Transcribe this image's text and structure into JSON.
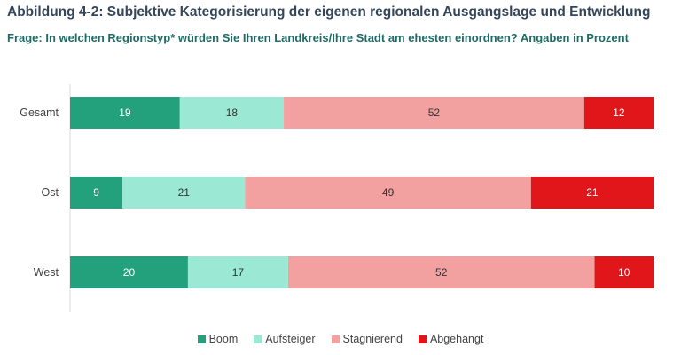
{
  "title": "Abbildung 4-2: Subjektive Kategorisierung der eigenen regionalen Ausgangslage und Entwicklung",
  "subtitle": "Frage: In welchen Regionstyp* würden Sie Ihren Landkreis/Ihre Stadt am ehesten einordnen? Angaben in Prozent",
  "chart_data": {
    "type": "bar",
    "orientation": "horizontal",
    "stacked": true,
    "categories": [
      "Gesamt",
      "Ost",
      "West"
    ],
    "series": [
      {
        "name": "Boom",
        "color": "#23a07c",
        "values": [
          19,
          9,
          20
        ]
      },
      {
        "name": "Aufsteiger",
        "color": "#9be9d4",
        "values": [
          18,
          21,
          17
        ]
      },
      {
        "name": "Stagnierend",
        "color": "#f3a0a0",
        "values": [
          52,
          49,
          52
        ]
      },
      {
        "name": "Abgehängt",
        "color": "#e1161b",
        "values": [
          12,
          21,
          10
        ]
      }
    ],
    "legend_position": "bottom",
    "grid": false
  }
}
